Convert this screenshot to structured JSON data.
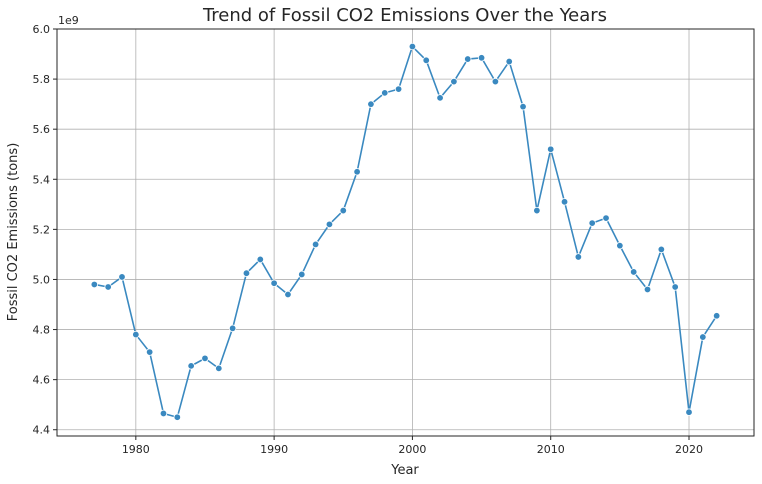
{
  "chart_data": {
    "type": "line",
    "title": "Trend of Fossil CO2 Emissions Over the Years",
    "xlabel": "Year",
    "ylabel": "Fossil CO2 Emissions (tons)",
    "y_multiplier_label": "1e9",
    "xlim": [
      1974.3,
      2024.7
    ],
    "ylim": [
      4.375,
      6.0
    ],
    "x_ticks": [
      1980,
      1990,
      2000,
      2010,
      2020
    ],
    "y_ticks": [
      4.4,
      4.6,
      4.8,
      5.0,
      5.2,
      5.4,
      5.6,
      5.8,
      6.0
    ],
    "y_tick_labels": [
      "4.4",
      "4.6",
      "4.8",
      "5.0",
      "5.2",
      "5.4",
      "5.6",
      "5.8",
      "6.0"
    ],
    "grid": true,
    "series": [
      {
        "color": "#3a89c0",
        "marker": "circle",
        "x": [
          1977,
          1978,
          1979,
          1980,
          1981,
          1982,
          1983,
          1984,
          1985,
          1986,
          1987,
          1988,
          1989,
          1990,
          1991,
          1992,
          1993,
          1994,
          1995,
          1996,
          1997,
          1998,
          1999,
          2000,
          2001,
          2002,
          2003,
          2004,
          2005,
          2006,
          2007,
          2008,
          2009,
          2010,
          2011,
          2012,
          2013,
          2014,
          2015,
          2016,
          2017,
          2018,
          2019,
          2020,
          2021,
          2022
        ],
        "y": [
          4.98,
          4.97,
          5.01,
          4.78,
          4.71,
          4.465,
          4.45,
          4.655,
          4.685,
          4.645,
          4.805,
          5.025,
          5.08,
          4.985,
          4.94,
          5.02,
          5.14,
          5.22,
          5.275,
          5.43,
          5.7,
          5.745,
          5.76,
          5.93,
          5.875,
          5.725,
          5.79,
          5.88,
          5.885,
          5.79,
          5.87,
          5.69,
          5.275,
          5.52,
          5.31,
          5.09,
          5.225,
          5.245,
          5.135,
          5.03,
          4.96,
          5.12,
          4.97,
          4.47,
          4.77,
          4.855
        ]
      }
    ]
  }
}
